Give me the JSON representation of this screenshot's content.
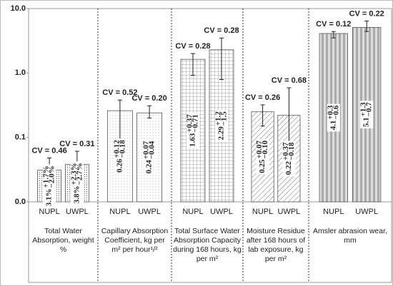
{
  "chart_data": {
    "type": "bar",
    "log_scale": true,
    "categories": [
      "Total Water Absorption, weight %",
      "Capillary Absorption Coefficient, kg per m² per hour¹/²",
      "Total Surface Water Absorption Capacity during 168 hours, kg per m²",
      "Moisture Residue after 168 hours of lab exposure, kg per m²",
      "Amsler abrasion wear, mm"
    ],
    "series": [
      {
        "name": "NUPL",
        "values": [
          0.031,
          0.26,
          1.63,
          0.25,
          4.1
        ],
        "value_labels": [
          "3.1%",
          "0.26",
          "1.63",
          "0.25",
          "4.1"
        ],
        "err_plus": [
          0.017,
          0.12,
          0.37,
          0.07,
          0.3
        ],
        "err_plus_labels": [
          "+1.7%",
          "+0.12",
          "+0.37",
          "+0.07",
          "+0.3"
        ],
        "err_minus": [
          0.02,
          0.18,
          0.71,
          0.1,
          0.6
        ],
        "err_minus_labels": [
          "−2.0%",
          "−0.18",
          "−0.71",
          "−0.10",
          "−0.6"
        ],
        "cv": [
          "CV = 0.46",
          "CV = 0.52",
          "CV = 0.28",
          "CV = 0.26",
          "CV = 0.12"
        ]
      },
      {
        "name": "UWPL",
        "values": [
          0.038,
          0.24,
          2.29,
          0.22,
          5.1
        ],
        "value_labels": [
          "3.8%",
          "0.24",
          "2.29",
          "0.22",
          "5.1"
        ],
        "err_plus": [
          0.023,
          0.07,
          1.2,
          0.37,
          1.3
        ],
        "err_plus_labels": [
          "+2.3%",
          "+0.07",
          "+1.2",
          "+0.37",
          "+1.3"
        ],
        "err_minus": [
          0.027,
          0.04,
          1.5,
          0.18,
          0.7
        ],
        "err_minus_labels": [
          "−2.7%",
          "−0.04",
          "−1.5",
          "−0.18",
          "−0.7"
        ],
        "cv": [
          "CV = 0.31",
          "CV = 0.20",
          "CV = 0.28",
          "CV = 0.68",
          "CV = 0.22"
        ]
      }
    ],
    "ylim": [
      0.01,
      10
    ],
    "yticks": [
      {
        "value": 0.01,
        "label": "0.0"
      },
      0.1,
      {
        "value": 1,
        "label": "1.0"
      },
      {
        "value": 10,
        "label": "10.0"
      }
    ]
  }
}
